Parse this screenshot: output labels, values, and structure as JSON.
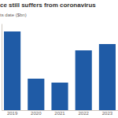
{
  "chart_data": {
    "type": "bar",
    "title": "ce still suffers from coronavirus",
    "subtitle": "ts date ($bn)",
    "categories": [
      "2019",
      "2020",
      "2021",
      "2022",
      "2023"
    ],
    "values": [
      100,
      40,
      35,
      76,
      84
    ],
    "color": "#1f5ba6",
    "ylim": [
      0,
      110
    ],
    "yticks": [],
    "tick_labels": "x",
    "grid": false
  }
}
